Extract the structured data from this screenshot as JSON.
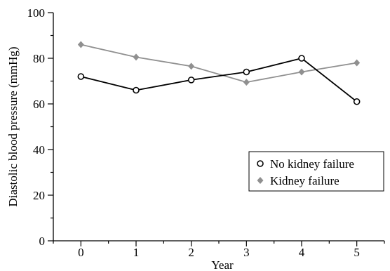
{
  "chart_data": {
    "type": "line",
    "xlabel": "Year",
    "ylabel": "Diastolic blood pressure (mmHg)",
    "xlim": [
      -0.5,
      5.5
    ],
    "ylim": [
      0,
      100
    ],
    "x_ticks": [
      0,
      1,
      2,
      3,
      4,
      5
    ],
    "y_ticks": [
      0,
      20,
      40,
      60,
      80,
      100
    ],
    "grid": false,
    "legend_position": "lower-right",
    "series": [
      {
        "name": "No kidney failure",
        "marker": "open-circle",
        "color": "#000000",
        "x": [
          0,
          1,
          2,
          3,
          4,
          5
        ],
        "values": [
          72,
          66,
          70.5,
          74,
          80,
          61
        ]
      },
      {
        "name": "Kidney failure",
        "marker": "diamond",
        "color": "#909090",
        "x": [
          0,
          1,
          2,
          3,
          4,
          5
        ],
        "values": [
          86,
          80.5,
          76.5,
          69.5,
          74,
          78
        ]
      }
    ]
  }
}
